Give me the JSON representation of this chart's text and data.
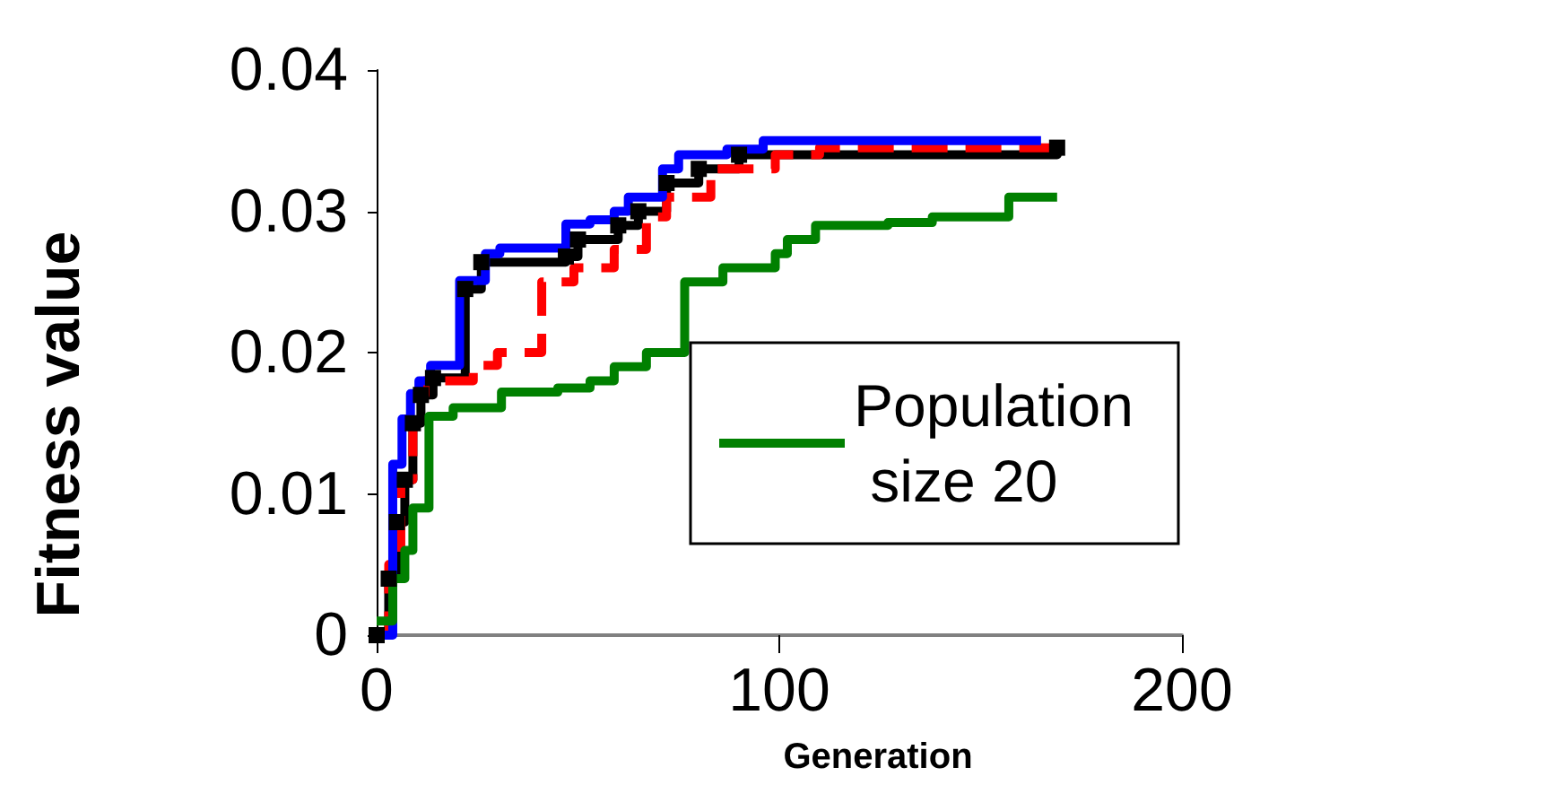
{
  "chart_data": {
    "type": "step",
    "xlabel": "Generation",
    "ylabel": "Fitness value",
    "xlim": [
      0,
      200
    ],
    "xticks": [
      0,
      100,
      200
    ],
    "ylim": [
      0,
      0.04
    ],
    "yticks": [
      0,
      0.01,
      0.02,
      0.03,
      0.04
    ],
    "grid": false,
    "legend": "right",
    "line_style": "solid",
    "marker": "none",
    "series": [
      {
        "color": "#000000",
        "marker": "square",
        "x": [
          0,
          3,
          5,
          7,
          9,
          11,
          14,
          22,
          26,
          47,
          50,
          60,
          65,
          72,
          80,
          90,
          169
        ],
        "values": [
          0,
          0.004,
          0.008,
          0.011,
          0.015,
          0.017,
          0.0182,
          0.0245,
          0.0264,
          0.0268,
          0.028,
          0.029,
          0.03,
          0.032,
          0.033,
          0.034,
          0.0345
        ]
      },
      {
        "color": "#ff0000",
        "line_style": "dashed",
        "x": [
          0,
          3,
          6,
          9,
          12,
          24,
          30,
          41,
          49,
          59,
          67,
          72,
          83,
          99,
          110,
          169
        ],
        "values": [
          0,
          0.005,
          0.011,
          0.017,
          0.018,
          0.0191,
          0.02,
          0.025,
          0.026,
          0.0273,
          0.0296,
          0.031,
          0.033,
          0.034,
          0.0345,
          0.0345
        ]
      },
      {
        "color": "#0000ff",
        "x": [
          0,
          4,
          6.3,
          8.4,
          10.5,
          13.4,
          20.6,
          27,
          30.6,
          47,
          53,
          59,
          62.5,
          71,
          75,
          87,
          96,
          165
        ],
        "values": [
          0,
          0.0121,
          0.0153,
          0.0171,
          0.018,
          0.0191,
          0.0251,
          0.027,
          0.0274,
          0.0291,
          0.0294,
          0.03,
          0.031,
          0.033,
          0.034,
          0.0344,
          0.035,
          0.035
        ]
      },
      {
        "name": "Population size 20",
        "color": "#008000",
        "x": [
          0,
          4,
          7,
          9,
          13,
          19,
          31,
          45,
          53,
          59,
          67,
          76.5,
          86,
          99,
          102,
          109,
          127,
          138,
          157,
          169
        ],
        "values": [
          0.001,
          0.004,
          0.006,
          0.009,
          0.0155,
          0.0161,
          0.0172,
          0.0175,
          0.018,
          0.019,
          0.02,
          0.025,
          0.026,
          0.027,
          0.028,
          0.029,
          0.0292,
          0.0296,
          0.031,
          0.031
        ]
      }
    ]
  }
}
